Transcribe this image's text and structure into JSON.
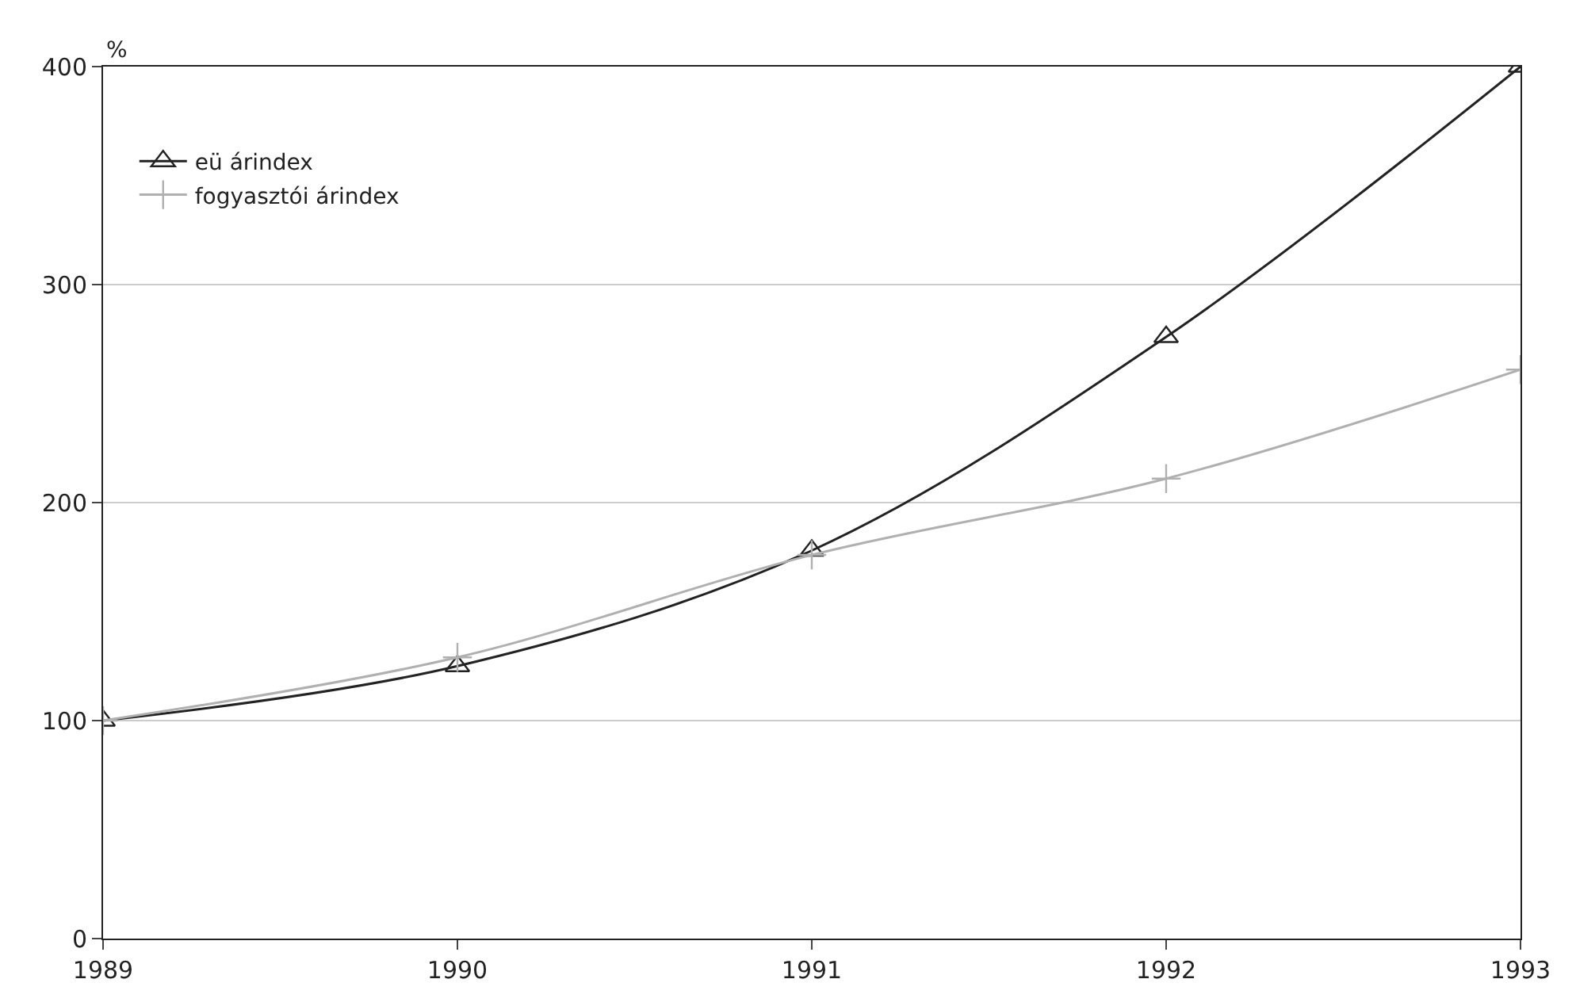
{
  "chart_data": {
    "type": "line",
    "ylabel": "%",
    "x": [
      1989,
      1990,
      1991,
      1992,
      1993
    ],
    "series": [
      {
        "name": "eü árindex",
        "color": "#222222",
        "marker": "triangle",
        "values": [
          100,
          125,
          178,
          276,
          400
        ]
      },
      {
        "name": "fogyasztói árindex",
        "color": "#b0b0b0",
        "marker": "cross",
        "values": [
          100,
          129,
          176,
          211,
          261
        ]
      }
    ],
    "xlim": [
      1989,
      1993
    ],
    "xticks": [
      1989,
      1990,
      1991,
      1992,
      1993
    ],
    "ylim": [
      0,
      400
    ],
    "yticks": [
      0,
      100,
      200,
      300,
      400
    ],
    "grid": "y",
    "legend": "top left",
    "line_style": "solid"
  }
}
